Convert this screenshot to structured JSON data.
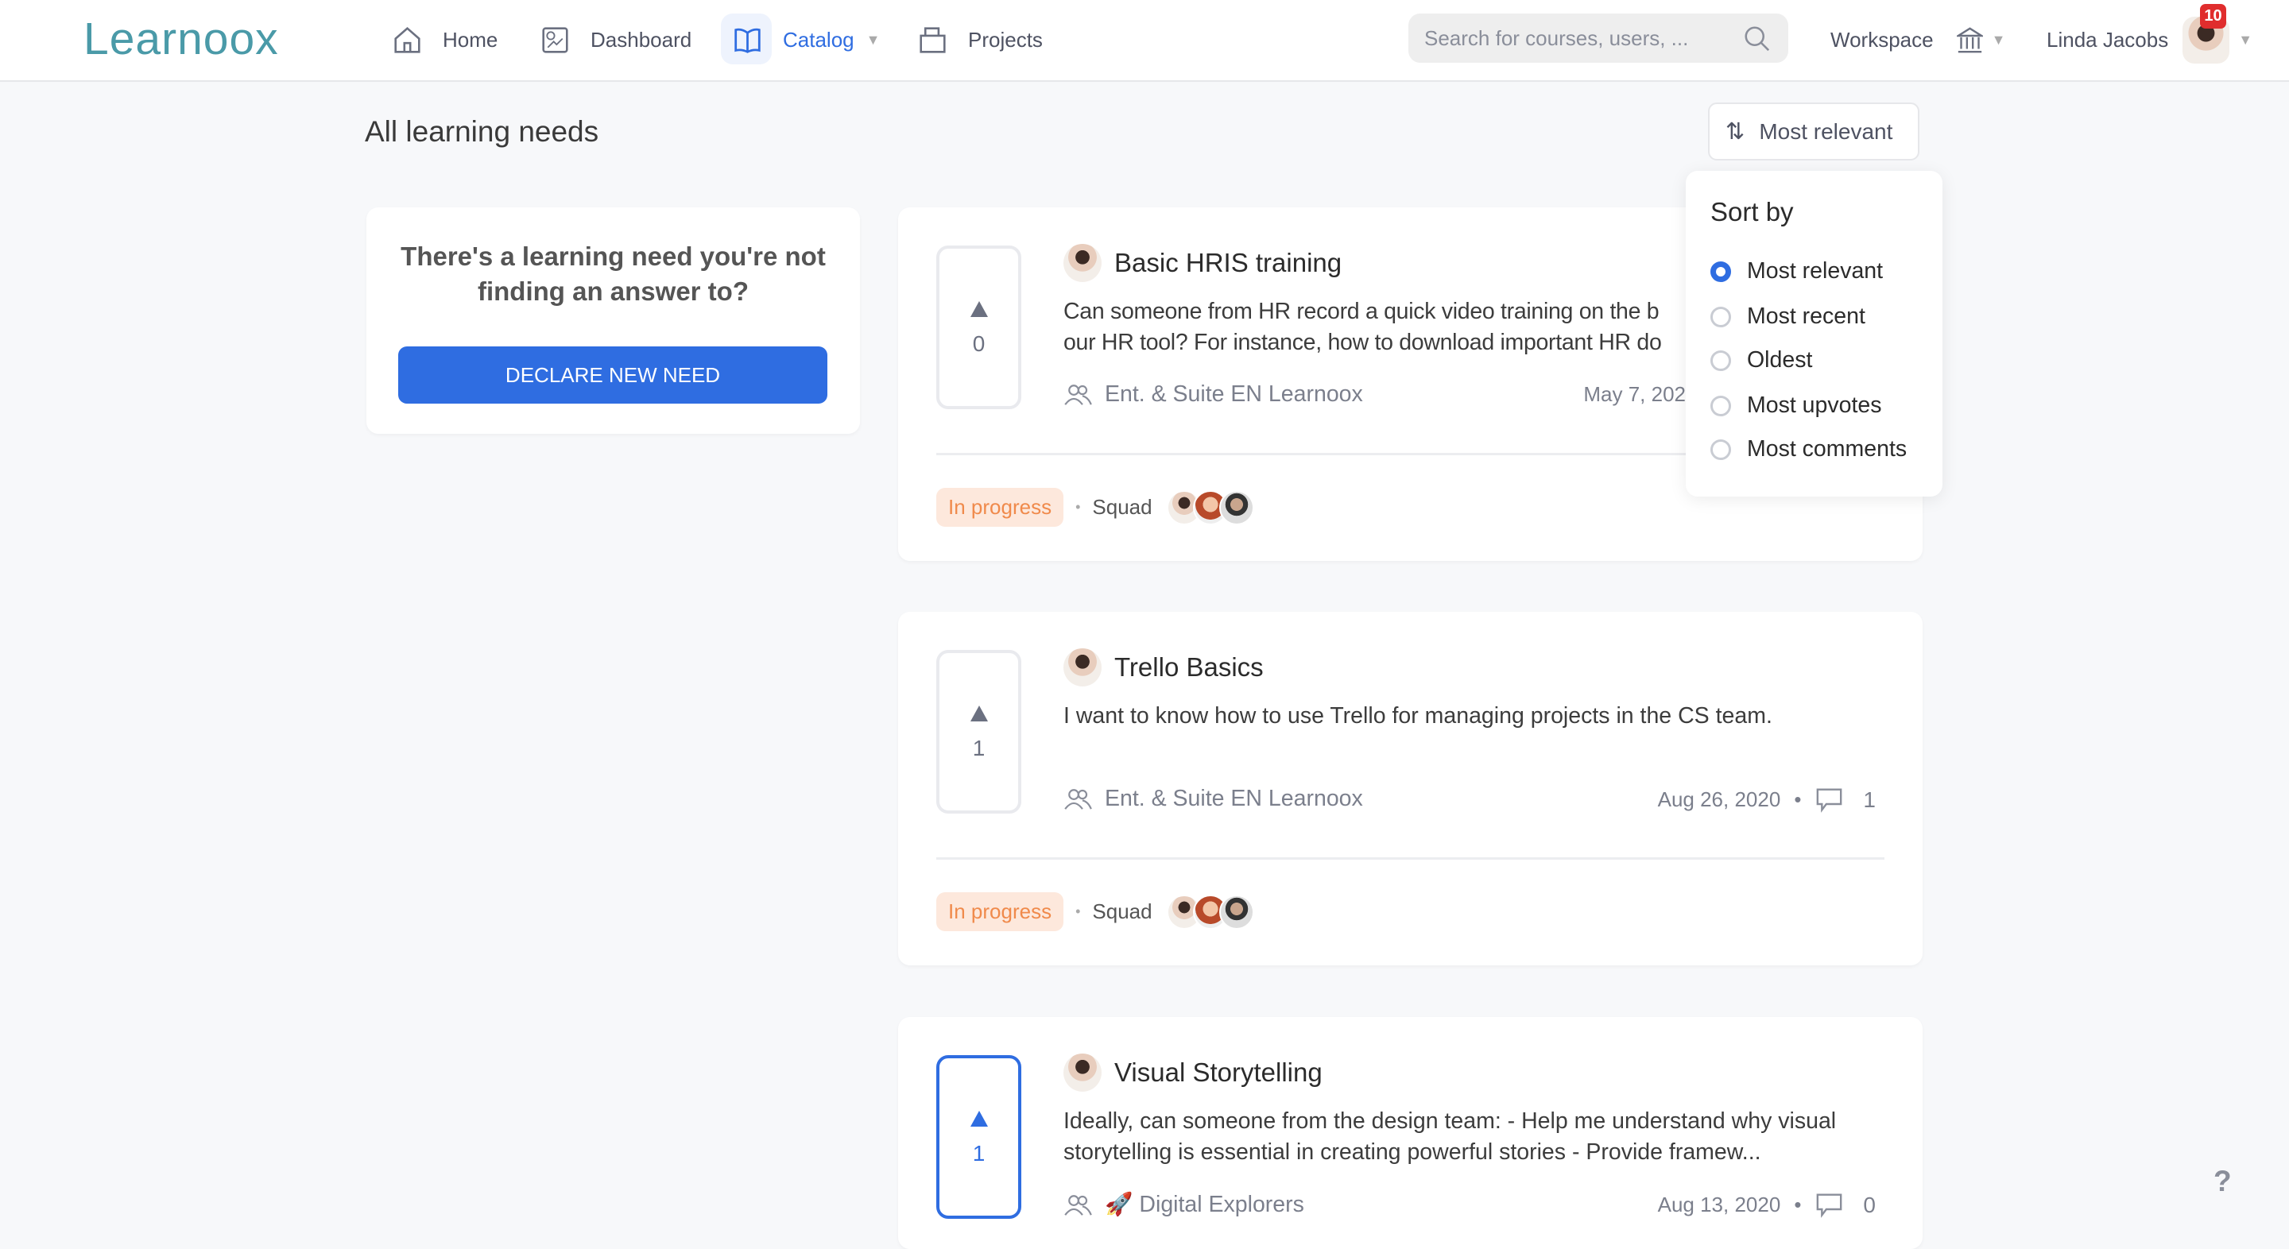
{
  "header": {
    "logo": "Learnoox",
    "nav": [
      {
        "label": "Home",
        "icon": "home-icon"
      },
      {
        "label": "Dashboard",
        "icon": "dashboard-icon"
      },
      {
        "label": "Catalog",
        "icon": "book-icon",
        "active": true
      },
      {
        "label": "Projects",
        "icon": "folder-icon"
      }
    ],
    "search_placeholder": "Search for courses, users, ...",
    "workspace_label": "Workspace",
    "user_name": "Linda Jacobs",
    "notification_count": "10"
  },
  "page_title": "All learning needs",
  "sort": {
    "button_label": "Most relevant",
    "dropdown_title": "Sort by",
    "options": [
      "Most relevant",
      "Most recent",
      "Oldest",
      "Most upvotes",
      "Most comments"
    ],
    "selected": "Most relevant"
  },
  "declare_card": {
    "text": "There's a learning need you're not finding an answer to?",
    "button_label": "DECLARE NEW NEED"
  },
  "needs": [
    {
      "votes": "0",
      "title": "Basic HRIS training",
      "description": "Can someone from HR record a quick video training on the b\nour HR tool? For instance, how to download important HR do",
      "group": "Ent. & Suite EN Learnoox",
      "date": "May 7, 202",
      "comments": "",
      "status": "In progress",
      "squad_label": "Squad",
      "voted": false
    },
    {
      "votes": "1",
      "title": "Trello Basics",
      "description": "I want to know how to use Trello for managing projects in the CS team.",
      "group": "Ent. & Suite EN Learnoox",
      "date": "Aug 26, 2020",
      "comments": "1",
      "status": "In progress",
      "squad_label": "Squad",
      "voted": false
    },
    {
      "votes": "1",
      "title": "Visual Storytelling",
      "description": "Ideally, can someone from the design team: - Help me understand why visual\nstorytelling is essential in creating powerful stories - Provide framew...",
      "group": "🚀 Digital Explorers",
      "date": "Aug 13, 2020",
      "comments": "0",
      "status": "",
      "squad_label": "",
      "voted": true
    }
  ],
  "help_label": "?",
  "colors": {
    "accent": "#2f6de1",
    "logo": "#4a9aa8",
    "status_bg": "#fde8dc",
    "status_text": "#f08a4b",
    "badge": "#e02d2d"
  }
}
